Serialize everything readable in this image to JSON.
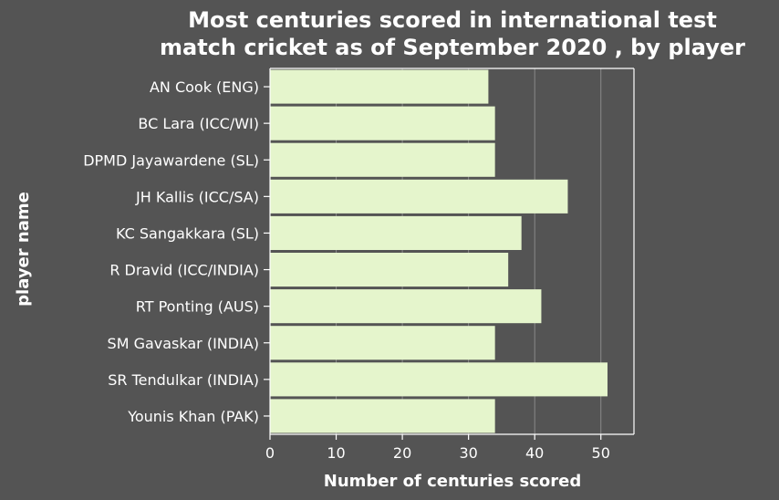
{
  "chart_data": {
    "type": "bar",
    "orientation": "horizontal",
    "title_lines": [
      "Most centuries scored in international test",
      "match cricket as of September 2020 , by player"
    ],
    "xlabel": "Number of centuries scored",
    "ylabel": "player name",
    "xlim": [
      0,
      55
    ],
    "xticks": [
      0,
      10,
      20,
      30,
      40,
      50
    ],
    "grid": "vertical",
    "legend": "none",
    "categories": [
      "AN Cook (ENG)",
      "BC Lara (ICC/WI)",
      "DPMD Jayawardene (SL)",
      "JH Kallis (ICC/SA)",
      "KC Sangakkara (SL)",
      "R Dravid (ICC/INDIA)",
      "RT Ponting (AUS)",
      "SM Gavaskar (INDIA)",
      "SR Tendulkar (INDIA)",
      "Younis Khan (PAK)"
    ],
    "values": [
      33,
      34,
      34,
      45,
      38,
      36,
      41,
      34,
      51,
      34
    ],
    "colors": {
      "background": "#545454",
      "bar_fill": "#e5f5cc",
      "gridline": "#8a8a8a",
      "axis": "#ffffff",
      "text": "#ffffff"
    }
  }
}
